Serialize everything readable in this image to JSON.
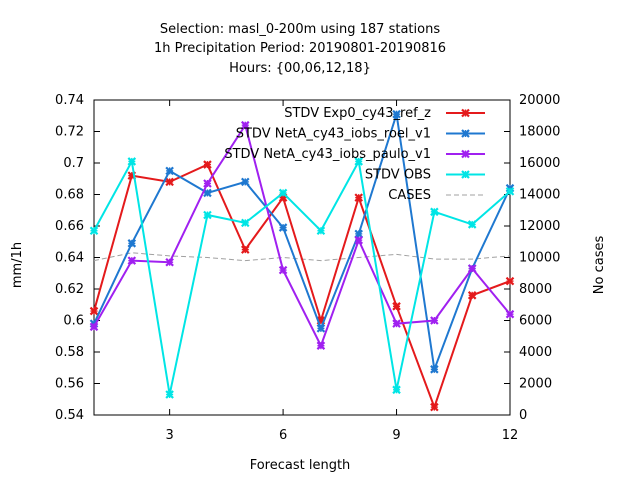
{
  "chart_data": {
    "type": "line",
    "title_lines": [
      "Selection: masl_0-200m using   187 stations",
      "1h Precipitation   Period: 20190801-20190816",
      "Hours: {00,06,12,18}"
    ],
    "xlabel": "Forecast length",
    "ylabel": "mm/1h",
    "y2label": "No cases",
    "xlim": [
      1,
      12
    ],
    "ylim": [
      0.54,
      0.74
    ],
    "y2lim": [
      0,
      20000
    ],
    "x_ticks": [
      3,
      6,
      9,
      12
    ],
    "y_ticks": [
      0.54,
      0.56,
      0.58,
      0.6,
      0.62,
      0.64,
      0.66,
      0.68,
      0.7,
      0.72,
      0.74
    ],
    "y2_ticks": [
      0,
      2000,
      4000,
      6000,
      8000,
      10000,
      12000,
      14000,
      16000,
      18000,
      20000
    ],
    "grid": false,
    "legend_position": "top-right",
    "x": [
      1,
      2,
      3,
      4,
      5,
      6,
      7,
      8,
      9,
      10,
      11,
      12
    ],
    "series": [
      {
        "name": "STDV Exp0_cy43_ref_z",
        "color": "#e41a1c",
        "axis": "left",
        "marker": "x",
        "values": [
          0.606,
          0.692,
          0.688,
          0.699,
          0.645,
          0.678,
          0.6,
          0.678,
          0.609,
          0.545,
          0.616,
          0.625
        ]
      },
      {
        "name": "STDV NetA_cy43_iobs_roel_v1",
        "color": "#1f78d0",
        "axis": "left",
        "marker": "x",
        "values": [
          0.598,
          0.649,
          0.695,
          0.681,
          0.688,
          0.659,
          0.595,
          0.655,
          0.731,
          0.569,
          0.633,
          0.684
        ]
      },
      {
        "name": "STDV NetA_cy43_iobs_paulo_v1",
        "color": "#a020f0",
        "axis": "left",
        "marker": "x",
        "values": [
          0.596,
          0.638,
          0.637,
          0.687,
          0.724,
          0.632,
          0.584,
          0.651,
          0.598,
          0.6,
          0.633,
          0.604
        ]
      },
      {
        "name": "STDV OBS",
        "color": "#00e5e5",
        "axis": "left",
        "marker": "x",
        "values": [
          0.657,
          0.701,
          0.553,
          0.667,
          0.662,
          0.681,
          0.657,
          0.701,
          0.556,
          0.669,
          0.661,
          0.682
        ]
      },
      {
        "name": "CASES",
        "color": "#a0a0a0",
        "axis": "right",
        "marker": "none",
        "dash": true,
        "values": [
          9800,
          10300,
          10100,
          10000,
          9800,
          10000,
          9800,
          10000,
          10200,
          9900,
          9900,
          10100
        ]
      }
    ]
  }
}
